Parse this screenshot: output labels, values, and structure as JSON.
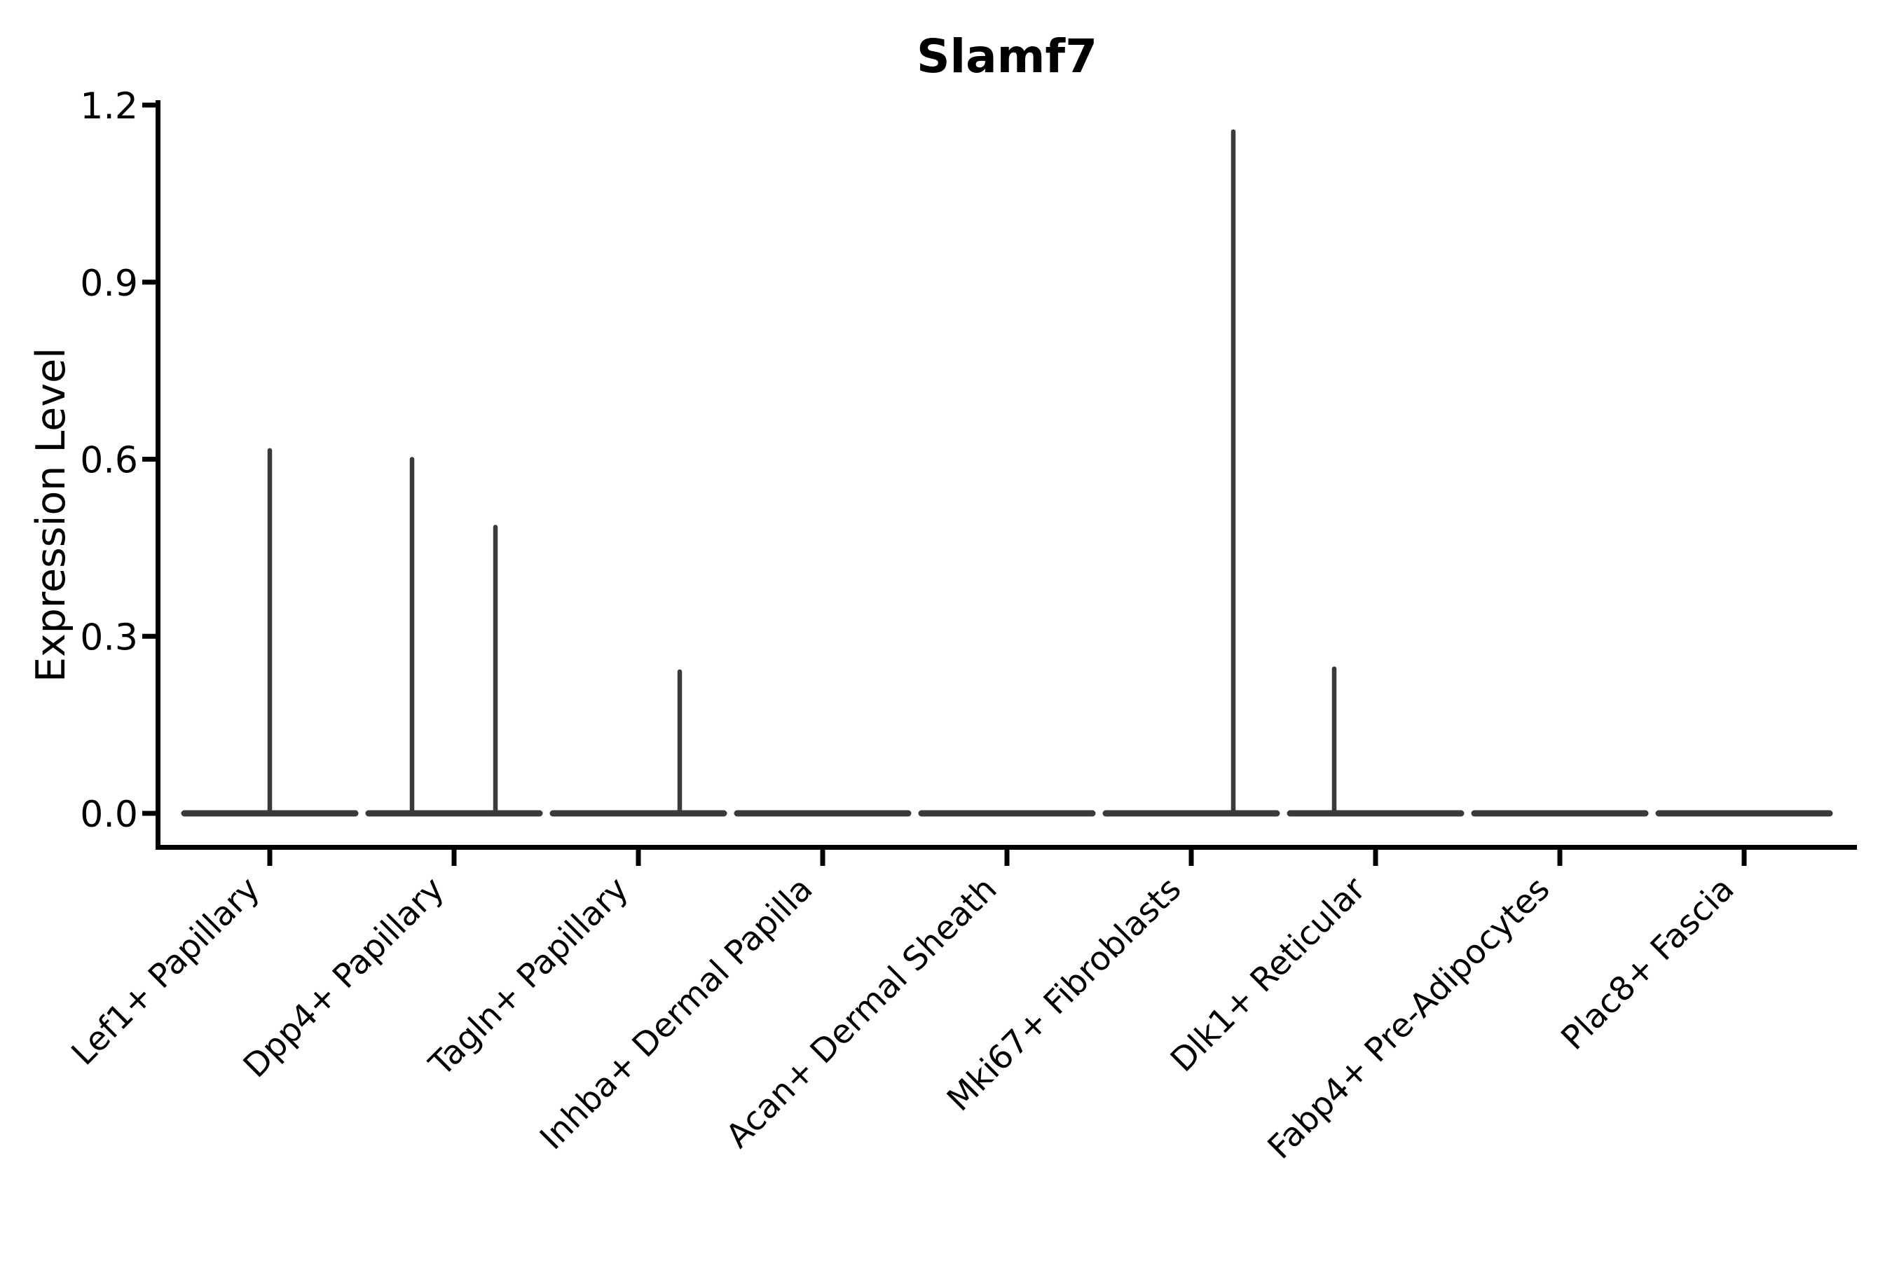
{
  "figure": {
    "title": "Slamf7",
    "y_axis_label": "Expression Level"
  },
  "chart_data": {
    "type": "violin",
    "title": "Slamf7",
    "xlabel": "",
    "ylabel": "Expression Level",
    "ylim": [
      0,
      1.2
    ],
    "yticks": [
      "0.0",
      "0.3",
      "0.6",
      "0.9",
      "1.2"
    ],
    "ytick_values": [
      0.0,
      0.3,
      0.6,
      0.9,
      1.2
    ],
    "grid": false,
    "legend": null,
    "categories": [
      "Lef1+ Papillary",
      "Dpp4+ Papillary",
      "Tagln+ Papillary",
      "Inhba+ Dermal Papilla",
      "Acan+ Dermal Sheath",
      "Mki67+ Fibroblasts",
      "Dlk1+ Reticular",
      "Fabp4+ Pre-Adipocytes",
      "Plac8+ Fascia"
    ],
    "violins": [
      {
        "category": "Lef1+ Papillary",
        "body": "flat-at-zero",
        "spikes": [
          {
            "x_offset": 0,
            "peak": 0.615
          }
        ]
      },
      {
        "category": "Dpp4+ Papillary",
        "body": "flat-at-zero",
        "spikes": [
          {
            "x_offset": -60,
            "peak": 0.6
          },
          {
            "x_offset": 59,
            "peak": 0.485
          }
        ]
      },
      {
        "category": "Tagln+ Papillary",
        "body": "flat-at-zero",
        "spikes": [
          {
            "x_offset": 59,
            "peak": 0.24
          }
        ]
      },
      {
        "category": "Inhba+ Dermal Papilla",
        "body": "flat-at-zero",
        "spikes": []
      },
      {
        "category": "Acan+ Dermal Sheath",
        "body": "flat-at-zero",
        "spikes": []
      },
      {
        "category": "Mki67+ Fibroblasts",
        "body": "flat-at-zero",
        "spikes": [
          {
            "x_offset": 60,
            "peak": 1.155
          }
        ]
      },
      {
        "category": "Dlk1+ Reticular",
        "body": "flat-at-zero",
        "spikes": [
          {
            "x_offset": -59,
            "peak": 0.245
          }
        ]
      },
      {
        "category": "Fabp4+ Pre-Adipocytes",
        "body": "flat-at-zero",
        "spikes": []
      },
      {
        "category": "Plac8+ Fascia",
        "body": "flat-at-zero",
        "spikes": []
      }
    ]
  },
  "style": {
    "background": "#ffffff",
    "text_color": "#000000",
    "axis_color": "#000000",
    "violin_color": "#3a3a3a"
  }
}
